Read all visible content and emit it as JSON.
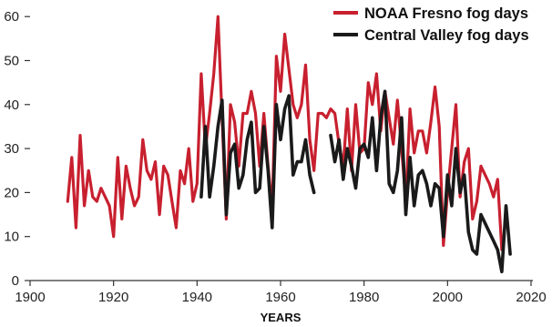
{
  "chart_data": {
    "type": "line",
    "title": "",
    "xlabel": "YEARS",
    "ylabel": "",
    "xlim": [
      1900,
      2020
    ],
    "ylim": [
      0,
      62
    ],
    "x_ticks": [
      1900,
      1920,
      1940,
      1960,
      1980,
      2000,
      2020
    ],
    "y_ticks": [
      0,
      10,
      20,
      30,
      40,
      50,
      60
    ],
    "grid": false,
    "legend_position": "top-right",
    "series": [
      {
        "name": "NOAA Fresno fog days",
        "color": "#c8202f",
        "points": [
          [
            1909,
            18
          ],
          [
            1910,
            28
          ],
          [
            1911,
            12
          ],
          [
            1912,
            33
          ],
          [
            1913,
            17
          ],
          [
            1914,
            25
          ],
          [
            1915,
            19
          ],
          [
            1916,
            18
          ],
          [
            1917,
            21
          ],
          [
            1918,
            19
          ],
          [
            1919,
            17
          ],
          [
            1920,
            10
          ],
          [
            1921,
            28
          ],
          [
            1922,
            14
          ],
          [
            1923,
            26
          ],
          [
            1924,
            21
          ],
          [
            1925,
            17
          ],
          [
            1926,
            19
          ],
          [
            1927,
            32
          ],
          [
            1928,
            25
          ],
          [
            1929,
            23
          ],
          [
            1930,
            27
          ],
          [
            1931,
            15
          ],
          [
            1932,
            26
          ],
          [
            1933,
            24
          ],
          [
            1934,
            18
          ],
          [
            1935,
            12
          ],
          [
            1936,
            25
          ],
          [
            1937,
            22
          ],
          [
            1938,
            30
          ],
          [
            1939,
            18
          ],
          [
            1940,
            22
          ],
          [
            1941,
            47
          ],
          [
            1942,
            30
          ],
          [
            1943,
            38
          ],
          [
            1944,
            47
          ],
          [
            1945,
            60
          ],
          [
            1946,
            37
          ],
          [
            1947,
            14
          ],
          [
            1948,
            40
          ],
          [
            1949,
            36
          ],
          [
            1950,
            26
          ],
          [
            1951,
            38
          ],
          [
            1952,
            38
          ],
          [
            1953,
            43
          ],
          [
            1954,
            38
          ],
          [
            1955,
            26
          ],
          [
            1956,
            38
          ],
          [
            1957,
            26
          ],
          [
            1958,
            16
          ],
          [
            1959,
            51
          ],
          [
            1960,
            43
          ],
          [
            1961,
            56
          ],
          [
            1962,
            48
          ],
          [
            1963,
            40
          ],
          [
            1964,
            37
          ],
          [
            1965,
            40
          ],
          [
            1966,
            49
          ],
          [
            1967,
            32
          ],
          [
            1968,
            25
          ],
          [
            1969,
            38
          ],
          [
            1970,
            38
          ],
          [
            1971,
            37
          ],
          [
            1972,
            39
          ],
          [
            1973,
            38
          ],
          [
            1974,
            31
          ],
          [
            1975,
            26
          ],
          [
            1976,
            39
          ],
          [
            1977,
            25
          ],
          [
            1978,
            40
          ],
          [
            1979,
            29
          ],
          [
            1980,
            30
          ],
          [
            1981,
            45
          ],
          [
            1982,
            40
          ],
          [
            1983,
            47
          ],
          [
            1984,
            34
          ],
          [
            1985,
            43
          ],
          [
            1986,
            37
          ],
          [
            1987,
            31
          ],
          [
            1988,
            41
          ],
          [
            1989,
            30
          ],
          [
            1990,
            18
          ],
          [
            1991,
            39
          ],
          [
            1992,
            29
          ],
          [
            1993,
            34
          ],
          [
            1994,
            34
          ],
          [
            1995,
            29
          ],
          [
            1996,
            36
          ],
          [
            1997,
            44
          ],
          [
            1998,
            35
          ],
          [
            1999,
            8
          ],
          [
            2000,
            20
          ],
          [
            2001,
            30
          ],
          [
            2002,
            40
          ],
          [
            2003,
            19
          ],
          [
            2004,
            27
          ],
          [
            2005,
            30
          ],
          [
            2006,
            14
          ],
          [
            2007,
            18
          ],
          [
            2008,
            26
          ],
          [
            2009,
            24
          ],
          [
            2010,
            22
          ],
          [
            2011,
            19
          ],
          [
            2012,
            23
          ],
          [
            2013,
            7
          ]
        ]
      },
      {
        "name": "Central Valley fog days",
        "color": "#1a1a1a",
        "points": [
          [
            1941,
            19
          ],
          [
            1942,
            35
          ],
          [
            1943,
            19
          ],
          [
            1944,
            26
          ],
          [
            1945,
            35
          ],
          [
            1946,
            41
          ],
          [
            1947,
            15
          ],
          [
            1948,
            29
          ],
          [
            1949,
            31
          ],
          [
            1950,
            21
          ],
          [
            1951,
            24
          ],
          [
            1952,
            32
          ],
          [
            1953,
            36
          ],
          [
            1954,
            20
          ],
          [
            1955,
            21
          ],
          [
            1956,
            35
          ],
          [
            1957,
            25
          ],
          [
            1958,
            12
          ],
          [
            1959,
            40
          ],
          [
            1960,
            32
          ],
          [
            1961,
            39
          ],
          [
            1962,
            42
          ],
          [
            1963,
            24
          ],
          [
            1964,
            27
          ],
          [
            1965,
            27
          ],
          [
            1966,
            32
          ],
          [
            1967,
            24
          ],
          [
            1968,
            20
          ],
          null,
          [
            1972,
            33
          ],
          [
            1973,
            27
          ],
          [
            1974,
            32
          ],
          [
            1975,
            23
          ],
          [
            1976,
            30
          ],
          [
            1977,
            26
          ],
          [
            1978,
            21
          ],
          [
            1979,
            30
          ],
          [
            1980,
            31
          ],
          [
            1981,
            28
          ],
          [
            1982,
            37
          ],
          [
            1983,
            25
          ],
          [
            1984,
            37
          ],
          [
            1985,
            43
          ],
          [
            1986,
            22
          ],
          [
            1987,
            20
          ],
          [
            1988,
            25
          ],
          [
            1989,
            37
          ],
          [
            1990,
            15
          ],
          [
            1991,
            28
          ],
          [
            1992,
            17
          ],
          [
            1993,
            24
          ],
          [
            1994,
            25
          ],
          [
            1995,
            22
          ],
          [
            1996,
            17
          ],
          [
            1997,
            22
          ],
          [
            1998,
            21
          ],
          [
            1999,
            10
          ],
          [
            2000,
            24
          ],
          [
            2001,
            17
          ],
          [
            2002,
            30
          ],
          [
            2003,
            20
          ],
          [
            2004,
            24
          ],
          [
            2005,
            11
          ],
          [
            2006,
            7
          ],
          [
            2007,
            6
          ],
          [
            2008,
            15
          ],
          [
            2009,
            13
          ],
          [
            2010,
            11
          ],
          [
            2011,
            9
          ],
          [
            2012,
            7
          ],
          [
            2013,
            2
          ],
          [
            2014,
            17
          ],
          [
            2015,
            6
          ]
        ]
      }
    ]
  }
}
